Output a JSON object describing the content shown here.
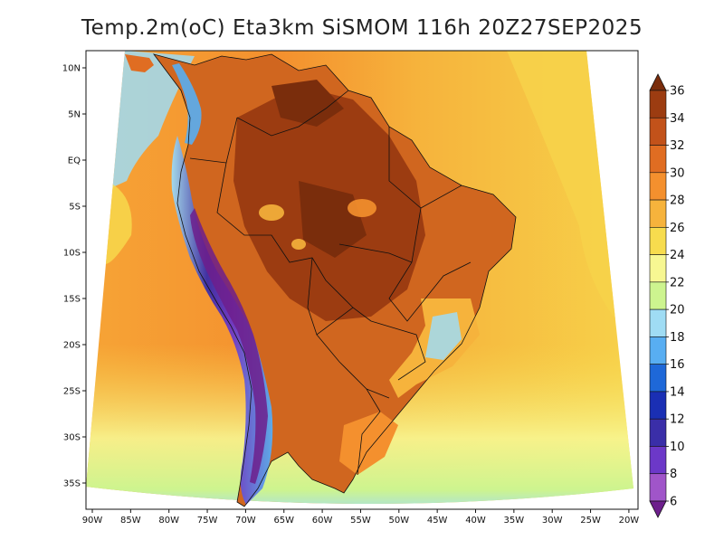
{
  "title": "Temp.2m(oC) Eta3km SiSMOM 116h 20Z27SEP2025",
  "map": {
    "variable": "Temp.2m",
    "units": "oC",
    "model": "Eta3km",
    "run_label": "SiSMOM",
    "forecast_hour": "116h",
    "valid_time": "20Z27SEP2025",
    "region": "South America",
    "lat_labels": [
      "10N",
      "5N",
      "EQ",
      "5S",
      "10S",
      "15S",
      "20S",
      "25S",
      "30S",
      "35S"
    ],
    "lat_values": [
      10,
      5,
      0,
      -5,
      -10,
      -15,
      -20,
      -25,
      -30,
      -35
    ],
    "lon_labels": [
      "90W",
      "85W",
      "80W",
      "75W",
      "70W",
      "65W",
      "60W",
      "55W",
      "50W",
      "45W",
      "40W",
      "35W",
      "30W",
      "25W",
      "20W"
    ],
    "lon_values": [
      -90,
      -85,
      -80,
      -75,
      -70,
      -65,
      -60,
      -55,
      -50,
      -45,
      -40,
      -35,
      -30,
      -25,
      -20
    ]
  },
  "colorbar": {
    "labels": [
      "36",
      "34",
      "32",
      "30",
      "28",
      "26",
      "24",
      "22",
      "20",
      "18",
      "16",
      "14",
      "12",
      "10",
      "8",
      "6"
    ],
    "colors": [
      "#7a2d0c",
      "#9c3c11",
      "#c2521a",
      "#e06d22",
      "#f4902e",
      "#f6b33c",
      "#f7dc4e",
      "#f7f792",
      "#cdf48f",
      "#9fdcf4",
      "#58aef2",
      "#1e68d8",
      "#1a2fb4",
      "#3a2ea8",
      "#6c38c8",
      "#a055c9",
      "#6d1f8c"
    ]
  }
}
